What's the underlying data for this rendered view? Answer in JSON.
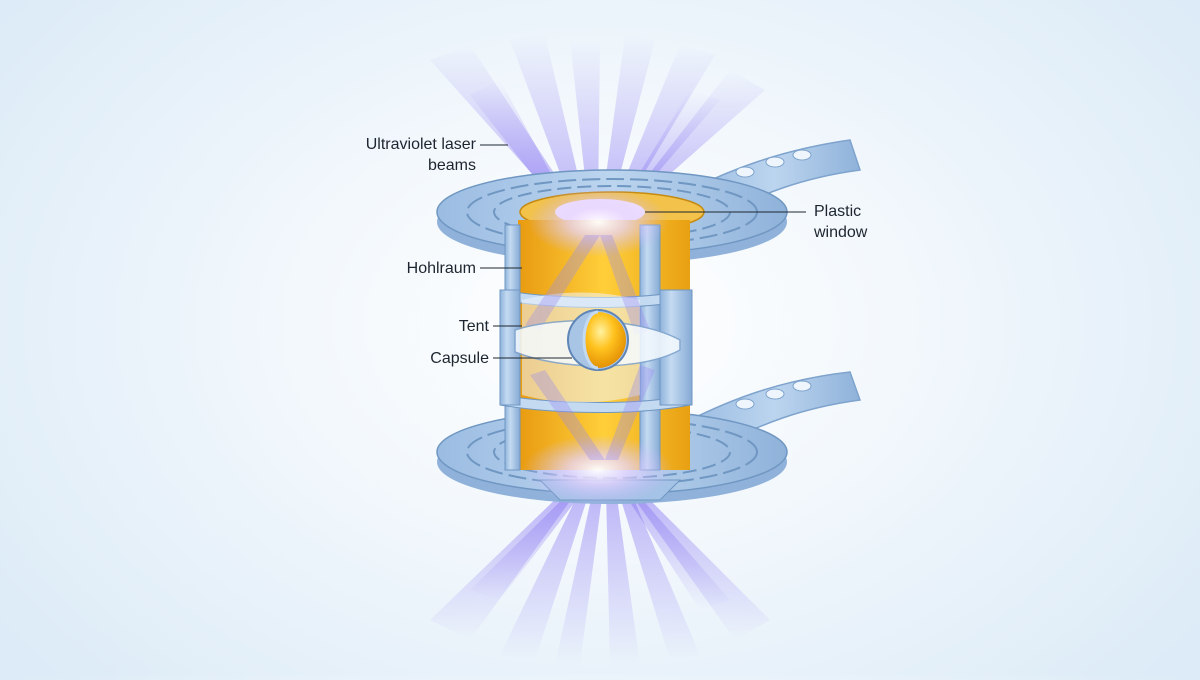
{
  "labels": {
    "uv_laser_line1": "Ultraviolet laser",
    "uv_laser_line2": "beams",
    "plastic_window_line1": "Plastic",
    "plastic_window_line2": "window",
    "hohlraum": "Hohlraum",
    "tent": "Tent",
    "capsule": "Capsule"
  },
  "colors": {
    "background": "#e6f0f9",
    "metal": "#a9c6e6",
    "metal_edge": "#6f97c2",
    "gold": "#f4b11d",
    "beam": "#9b8cf0",
    "label_text": "#1d2630"
  }
}
